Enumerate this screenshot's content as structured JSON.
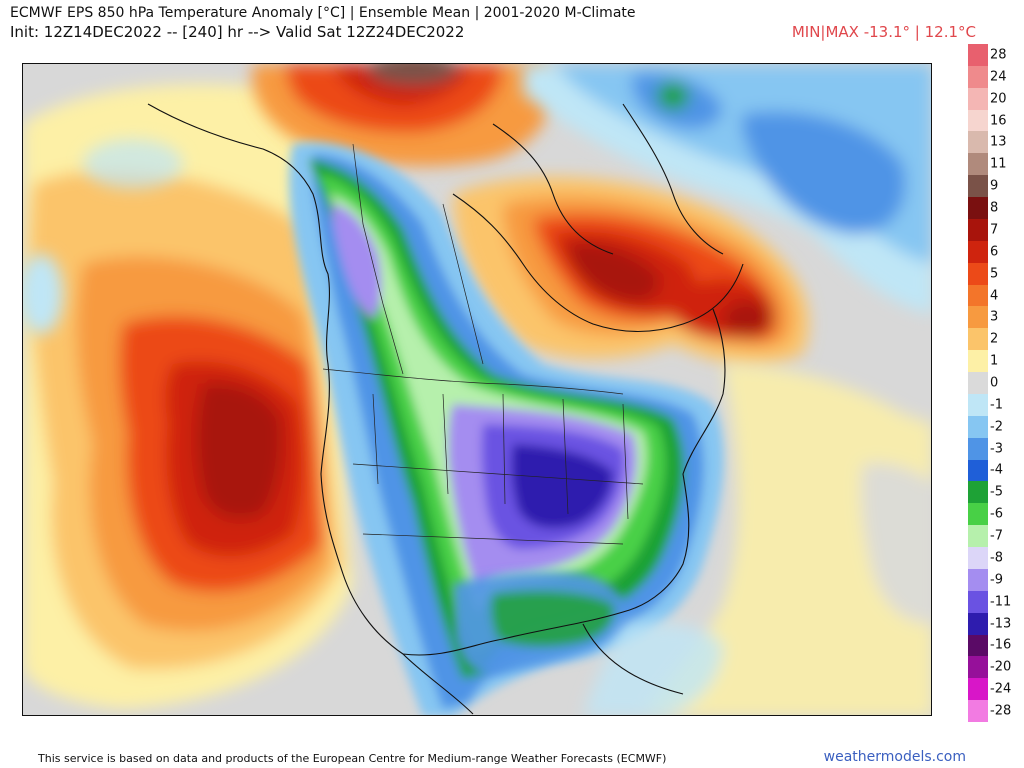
{
  "header": {
    "title_line1": "ECMWF EPS 850 hPa Temperature Anomaly [°C] | Ensemble Mean | 2001-2020 M-Climate",
    "title_line2": "Init: 12Z14DEC2022 -- [240] hr --> Valid Sat 12Z24DEC2022",
    "minmax": "MIN|MAX -13.1° | 12.1°C"
  },
  "legend": {
    "levels": [
      {
        "label": "28",
        "color": "#e8606e"
      },
      {
        "label": "24",
        "color": "#ef8a8c"
      },
      {
        "label": "20",
        "color": "#f4b6b4"
      },
      {
        "label": "16",
        "color": "#f6d5cf"
      },
      {
        "label": "13",
        "color": "#d9b9ad"
      },
      {
        "label": "11",
        "color": "#b08a7c"
      },
      {
        "label": "9",
        "color": "#7a5248"
      },
      {
        "label": "8",
        "color": "#7a1010"
      },
      {
        "label": "7",
        "color": "#a8140c"
      },
      {
        "label": "6",
        "color": "#cf240e"
      },
      {
        "label": "5",
        "color": "#ec4a18"
      },
      {
        "label": "4",
        "color": "#f3752a"
      },
      {
        "label": "3",
        "color": "#f79a40"
      },
      {
        "label": "2",
        "color": "#fbc46a"
      },
      {
        "label": "1",
        "color": "#fdf0a6"
      },
      {
        "label": "0",
        "color": "#dadada"
      },
      {
        "label": "-1",
        "color": "#bfe6f6"
      },
      {
        "label": "-2",
        "color": "#86c6f2"
      },
      {
        "label": "-3",
        "color": "#4f94e6"
      },
      {
        "label": "-4",
        "color": "#1f5fd8"
      },
      {
        "label": "-5",
        "color": "#1ea236"
      },
      {
        "label": "-6",
        "color": "#48d046"
      },
      {
        "label": "-7",
        "color": "#b6f0ac"
      },
      {
        "label": "-8",
        "color": "#dcd6f8"
      },
      {
        "label": "-9",
        "color": "#a48df0"
      },
      {
        "label": "-11",
        "color": "#6a52e2"
      },
      {
        "label": "-13",
        "color": "#2e1cae"
      },
      {
        "label": "-16",
        "color": "#5a0a66"
      },
      {
        "label": "-20",
        "color": "#96109a"
      },
      {
        "label": "-24",
        "color": "#d816c8"
      },
      {
        "label": "-28",
        "color": "#f27be2"
      }
    ]
  },
  "footer": {
    "attribution": "This service is based on data and products of the European Centre for Medium-range Weather Forecasts (ECMWF)",
    "site": "weathermodels.com"
  }
}
